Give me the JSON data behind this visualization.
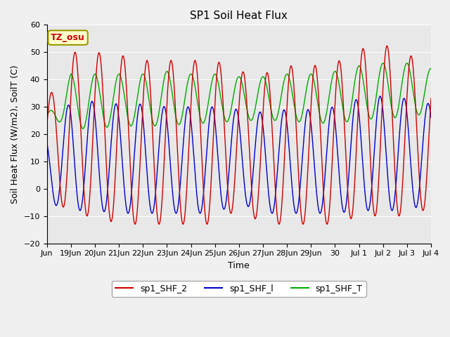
{
  "title": "SP1 Soil Heat Flux",
  "ylabel": "Soil Heat Flux (W/m2), SoilT (C)",
  "xlabel": "Time",
  "ylim": [
    -20,
    60
  ],
  "yticks": [
    -20,
    -10,
    0,
    10,
    20,
    30,
    40,
    50,
    60
  ],
  "xtick_labels": [
    "Jun",
    "19Jun",
    "20Jun",
    "21Jun",
    "22Jun",
    "23Jun",
    "24Jun",
    "25Jun",
    "26Jun",
    "27Jun",
    "28Jun",
    "29Jun",
    "30",
    "Jul 1",
    "Jul 2",
    "Jul 3",
    "Jul 4"
  ],
  "line_colors": [
    "#cc0000",
    "#0000cc",
    "#00aa00"
  ],
  "legend_labels": [
    "sp1_SHF_2",
    "sp1_SHF_l",
    "sp1_SHF_T"
  ],
  "annotation_text": "TZ_osu",
  "annotation_box_color": "#ffffcc",
  "annotation_text_color": "#cc0000",
  "annotation_border_color": "#999900",
  "plot_bg_color": "#e8e8e8",
  "fig_bg_color": "#f0f0f0",
  "grid_color": "#ffffff",
  "title_fontsize": 11,
  "axis_label_fontsize": 9,
  "tick_fontsize": 8,
  "legend_fontsize": 9,
  "num_days": 16.0,
  "samples_per_day": 48
}
